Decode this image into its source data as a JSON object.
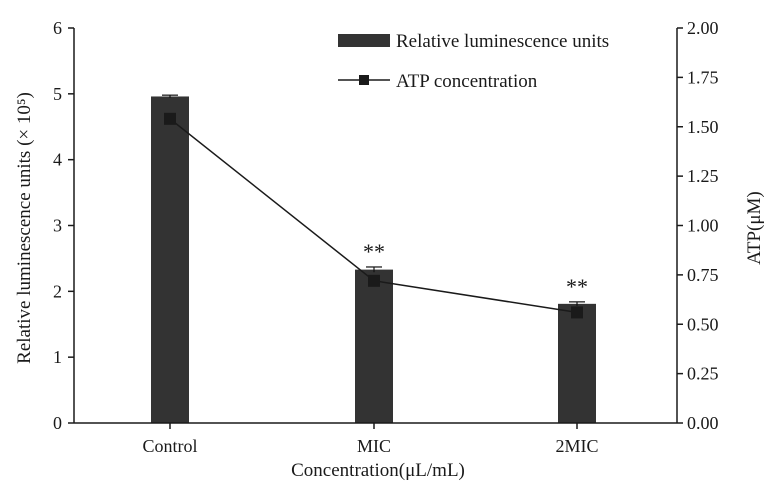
{
  "chart_data": {
    "type": "bar+line",
    "categories": [
      "Control",
      "MIC",
      "2MIC"
    ],
    "series": [
      {
        "name": "Relative luminescence units",
        "kind": "bar",
        "axis": "left",
        "values": [
          4.96,
          2.33,
          1.81
        ],
        "errors": [
          0.02,
          0.04,
          0.03
        ],
        "color": "#333333"
      },
      {
        "name": "ATP concentration",
        "kind": "line",
        "axis": "right",
        "values": [
          1.54,
          0.72,
          0.56
        ],
        "errors": [
          0.015,
          0.02,
          0.02
        ],
        "color": "#1a1a1a"
      }
    ],
    "annotations": [
      "",
      "**",
      "**"
    ],
    "xlabel": "Concentration(μL/mL)",
    "ylabel": "Relative luminescence units (× 10⁵)",
    "y2label": "ATP(μM)",
    "ylim": [
      0,
      6
    ],
    "y2lim": [
      0,
      2
    ],
    "yticks": [
      "0",
      "1",
      "2",
      "3",
      "4",
      "5",
      "6"
    ],
    "y2ticks": [
      "0.00",
      "0.25",
      "0.50",
      "0.75",
      "1.00",
      "1.25",
      "1.50",
      "1.75",
      "2.00"
    ],
    "legend": "top-right",
    "grid": false
  }
}
